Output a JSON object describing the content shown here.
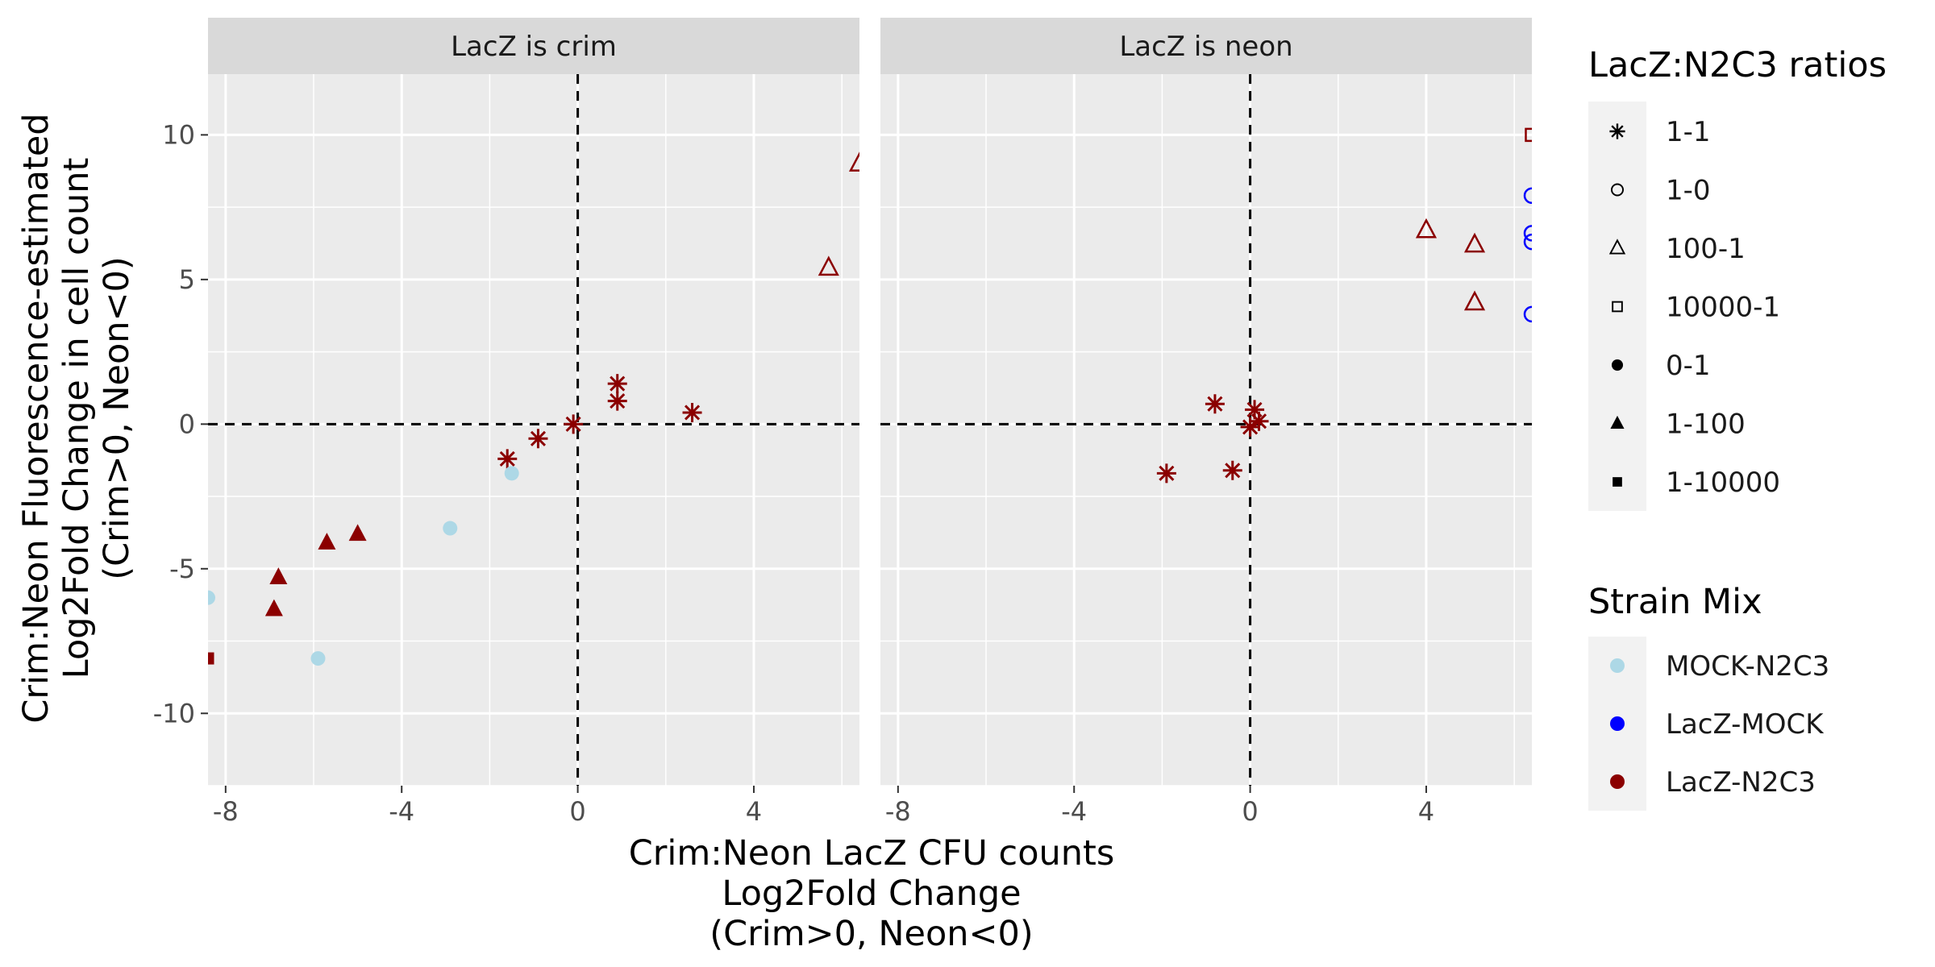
{
  "chart_data": {
    "type": "scatter",
    "facets": [
      "LacZ is crim",
      "LacZ is neon"
    ],
    "xlabel": [
      "Crim:Neon LacZ CFU counts",
      "Log2Fold Change",
      "(Crim>0, Neon<0)"
    ],
    "ylabel": [
      "Crim:Neon Fluorescence-estimated",
      "Log2Fold Change in cell count",
      "(Crim>0, Neon<0)"
    ],
    "xlim": [
      -8.4,
      6.4
    ],
    "ylim": [
      -12.5,
      12.1
    ],
    "x_ticks": [
      -8,
      -4,
      0,
      4
    ],
    "x_tick_labels": [
      "-8",
      "-4",
      "0",
      "4"
    ],
    "y_ticks": [
      10,
      5,
      0,
      -5,
      -10
    ],
    "y_tick_labels": [
      "10",
      "5",
      "0",
      "-5",
      "-10"
    ],
    "reference_lines": {
      "x": 0,
      "y": 0,
      "style": "dashed"
    },
    "grid": true,
    "legends": {
      "shape": {
        "title": "LacZ:N2C3 ratios",
        "items": [
          {
            "label": "1-1",
            "shape": "asterisk"
          },
          {
            "label": "1-0",
            "shape": "open-circle"
          },
          {
            "label": "100-1",
            "shape": "open-triangle"
          },
          {
            "label": "10000-1",
            "shape": "open-square"
          },
          {
            "label": "0-1",
            "shape": "filled-circle"
          },
          {
            "label": "1-100",
            "shape": "filled-triangle"
          },
          {
            "label": "1-10000",
            "shape": "filled-square"
          }
        ]
      },
      "color": {
        "title": "Strain Mix",
        "items": [
          {
            "label": "MOCK-N2C3",
            "color": "#add8e6"
          },
          {
            "label": "LacZ-MOCK",
            "color": "#0000ff"
          },
          {
            "label": "LacZ-N2C3",
            "color": "#8b0000"
          }
        ]
      }
    },
    "series": [
      {
        "facet": "LacZ is crim",
        "points": [
          {
            "x": -0.1,
            "y": 0.0,
            "shape": "asterisk",
            "color": "#8b0000"
          },
          {
            "x": -0.9,
            "y": -0.5,
            "shape": "asterisk",
            "color": "#8b0000"
          },
          {
            "x": -1.6,
            "y": -1.2,
            "shape": "asterisk",
            "color": "#8b0000"
          },
          {
            "x": 0.9,
            "y": 0.8,
            "shape": "asterisk",
            "color": "#8b0000"
          },
          {
            "x": 0.9,
            "y": 1.4,
            "shape": "asterisk",
            "color": "#8b0000"
          },
          {
            "x": 2.6,
            "y": 0.4,
            "shape": "asterisk",
            "color": "#8b0000"
          },
          {
            "x": 5.7,
            "y": 5.4,
            "shape": "open-triangle",
            "color": "#8b0000"
          },
          {
            "x": 6.4,
            "y": 9.0,
            "shape": "open-triangle",
            "color": "#8b0000"
          },
          {
            "x": -1.5,
            "y": -1.7,
            "shape": "filled-circle",
            "color": "#add8e6"
          },
          {
            "x": -2.9,
            "y": -3.6,
            "shape": "filled-circle",
            "color": "#add8e6"
          },
          {
            "x": -5.9,
            "y": -8.1,
            "shape": "filled-circle",
            "color": "#add8e6"
          },
          {
            "x": -8.4,
            "y": -6.0,
            "shape": "filled-circle",
            "color": "#add8e6"
          },
          {
            "x": -5.0,
            "y": -3.8,
            "shape": "filled-triangle",
            "color": "#8b0000"
          },
          {
            "x": -5.7,
            "y": -4.1,
            "shape": "filled-triangle",
            "color": "#8b0000"
          },
          {
            "x": -6.8,
            "y": -5.3,
            "shape": "filled-triangle",
            "color": "#8b0000"
          },
          {
            "x": -6.9,
            "y": -6.4,
            "shape": "filled-triangle",
            "color": "#8b0000"
          },
          {
            "x": -8.4,
            "y": -8.1,
            "shape": "filled-square",
            "color": "#8b0000"
          }
        ]
      },
      {
        "facet": "LacZ is neon",
        "points": [
          {
            "x": -0.8,
            "y": 0.7,
            "shape": "asterisk",
            "color": "#8b0000"
          },
          {
            "x": 0.1,
            "y": 0.5,
            "shape": "asterisk",
            "color": "#8b0000"
          },
          {
            "x": 0.0,
            "y": -0.1,
            "shape": "asterisk",
            "color": "#8b0000"
          },
          {
            "x": 0.2,
            "y": 0.1,
            "shape": "asterisk",
            "color": "#8b0000"
          },
          {
            "x": -1.9,
            "y": -1.7,
            "shape": "asterisk",
            "color": "#8b0000"
          },
          {
            "x": -0.4,
            "y": -1.6,
            "shape": "asterisk",
            "color": "#8b0000"
          },
          {
            "x": 4.0,
            "y": 6.7,
            "shape": "open-triangle",
            "color": "#8b0000"
          },
          {
            "x": 5.1,
            "y": 6.2,
            "shape": "open-triangle",
            "color": "#8b0000"
          },
          {
            "x": 5.1,
            "y": 4.2,
            "shape": "open-triangle",
            "color": "#8b0000"
          },
          {
            "x": 6.4,
            "y": 10.0,
            "shape": "open-square",
            "color": "#8b0000"
          },
          {
            "x": 6.4,
            "y": 7.9,
            "shape": "open-circle",
            "color": "#0000ff"
          },
          {
            "x": 6.4,
            "y": 6.6,
            "shape": "open-circle",
            "color": "#0000ff"
          },
          {
            "x": 6.4,
            "y": 6.3,
            "shape": "open-circle",
            "color": "#0000ff"
          },
          {
            "x": 6.4,
            "y": 3.8,
            "shape": "open-circle",
            "color": "#0000ff"
          }
        ]
      }
    ]
  }
}
